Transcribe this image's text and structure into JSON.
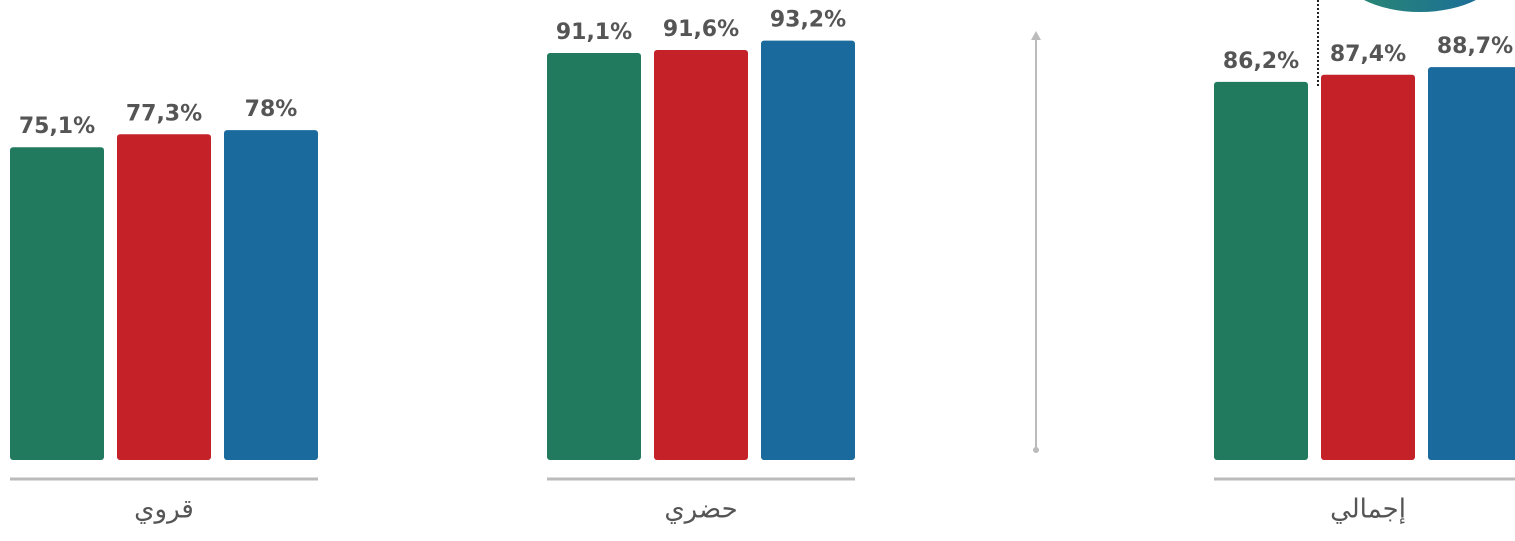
{
  "chart_data": {
    "type": "bar",
    "categories": [
      "قروي",
      "حضري",
      "إجمالي"
    ],
    "series": [
      {
        "color": "#217a5e",
        "values": [
          75.1,
          91.1,
          86.2
        ],
        "value_labels": [
          "75,1%",
          "91,1%",
          "86,2%"
        ]
      },
      {
        "color": "#c42128",
        "values": [
          77.3,
          91.6,
          87.4
        ],
        "value_labels": [
          "77,3%",
          "91,6%",
          "87,4%"
        ]
      },
      {
        "color": "#1a6a9e",
        "values": [
          78,
          93.2,
          88.7
        ],
        "value_labels": [
          "78%",
          "93,2%",
          "88,7%"
        ]
      }
    ],
    "ylim": [
      22,
      95
    ]
  }
}
